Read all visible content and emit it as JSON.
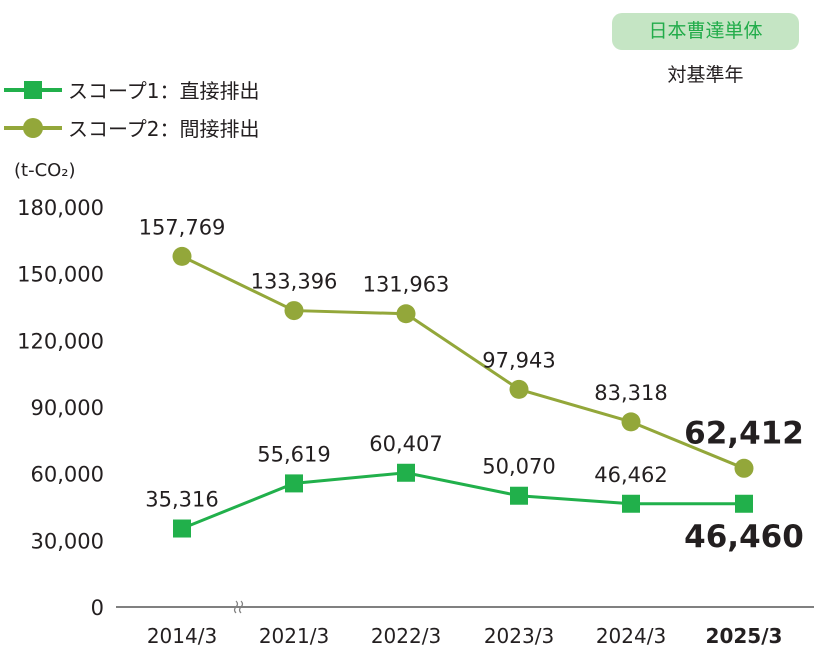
{
  "badge": "日本曹達単体",
  "badge_sub": "対基準年",
  "colors": {
    "scope1": "#21b04b",
    "scope2": "#93a73a",
    "axis": "#808080",
    "badge_bg": "#c5e5c4"
  },
  "chart_data": {
    "type": "line",
    "ylabel": "(t-CO₂)",
    "ylim": [
      0,
      180000
    ],
    "yticks": [
      "0",
      "30,000",
      "60,000",
      "90,000",
      "120,000",
      "150,000",
      "180,000"
    ],
    "ytick_values": [
      0,
      30000,
      60000,
      90000,
      120000,
      150000,
      180000
    ],
    "categories": [
      "2014/3",
      "2021/3",
      "2022/3",
      "2023/3",
      "2024/3",
      "2025/3"
    ],
    "axis_break_after": "2014/3",
    "grid": false,
    "legend_placement": "top-left",
    "series": [
      {
        "name": "スコープ1：直接排出",
        "marker": "square",
        "values": [
          35316,
          55619,
          60407,
          50070,
          46462,
          46460
        ],
        "labels": [
          "35,316",
          "55,619",
          "60,407",
          "50,070",
          "46,462",
          "46,460"
        ]
      },
      {
        "name": "スコープ2：間接排出",
        "marker": "circle",
        "values": [
          157769,
          133396,
          131963,
          97943,
          83318,
          62412
        ],
        "labels": [
          "157,769",
          "133,396",
          "131,963",
          "97,943",
          "83,318",
          "62,412"
        ]
      }
    ]
  }
}
